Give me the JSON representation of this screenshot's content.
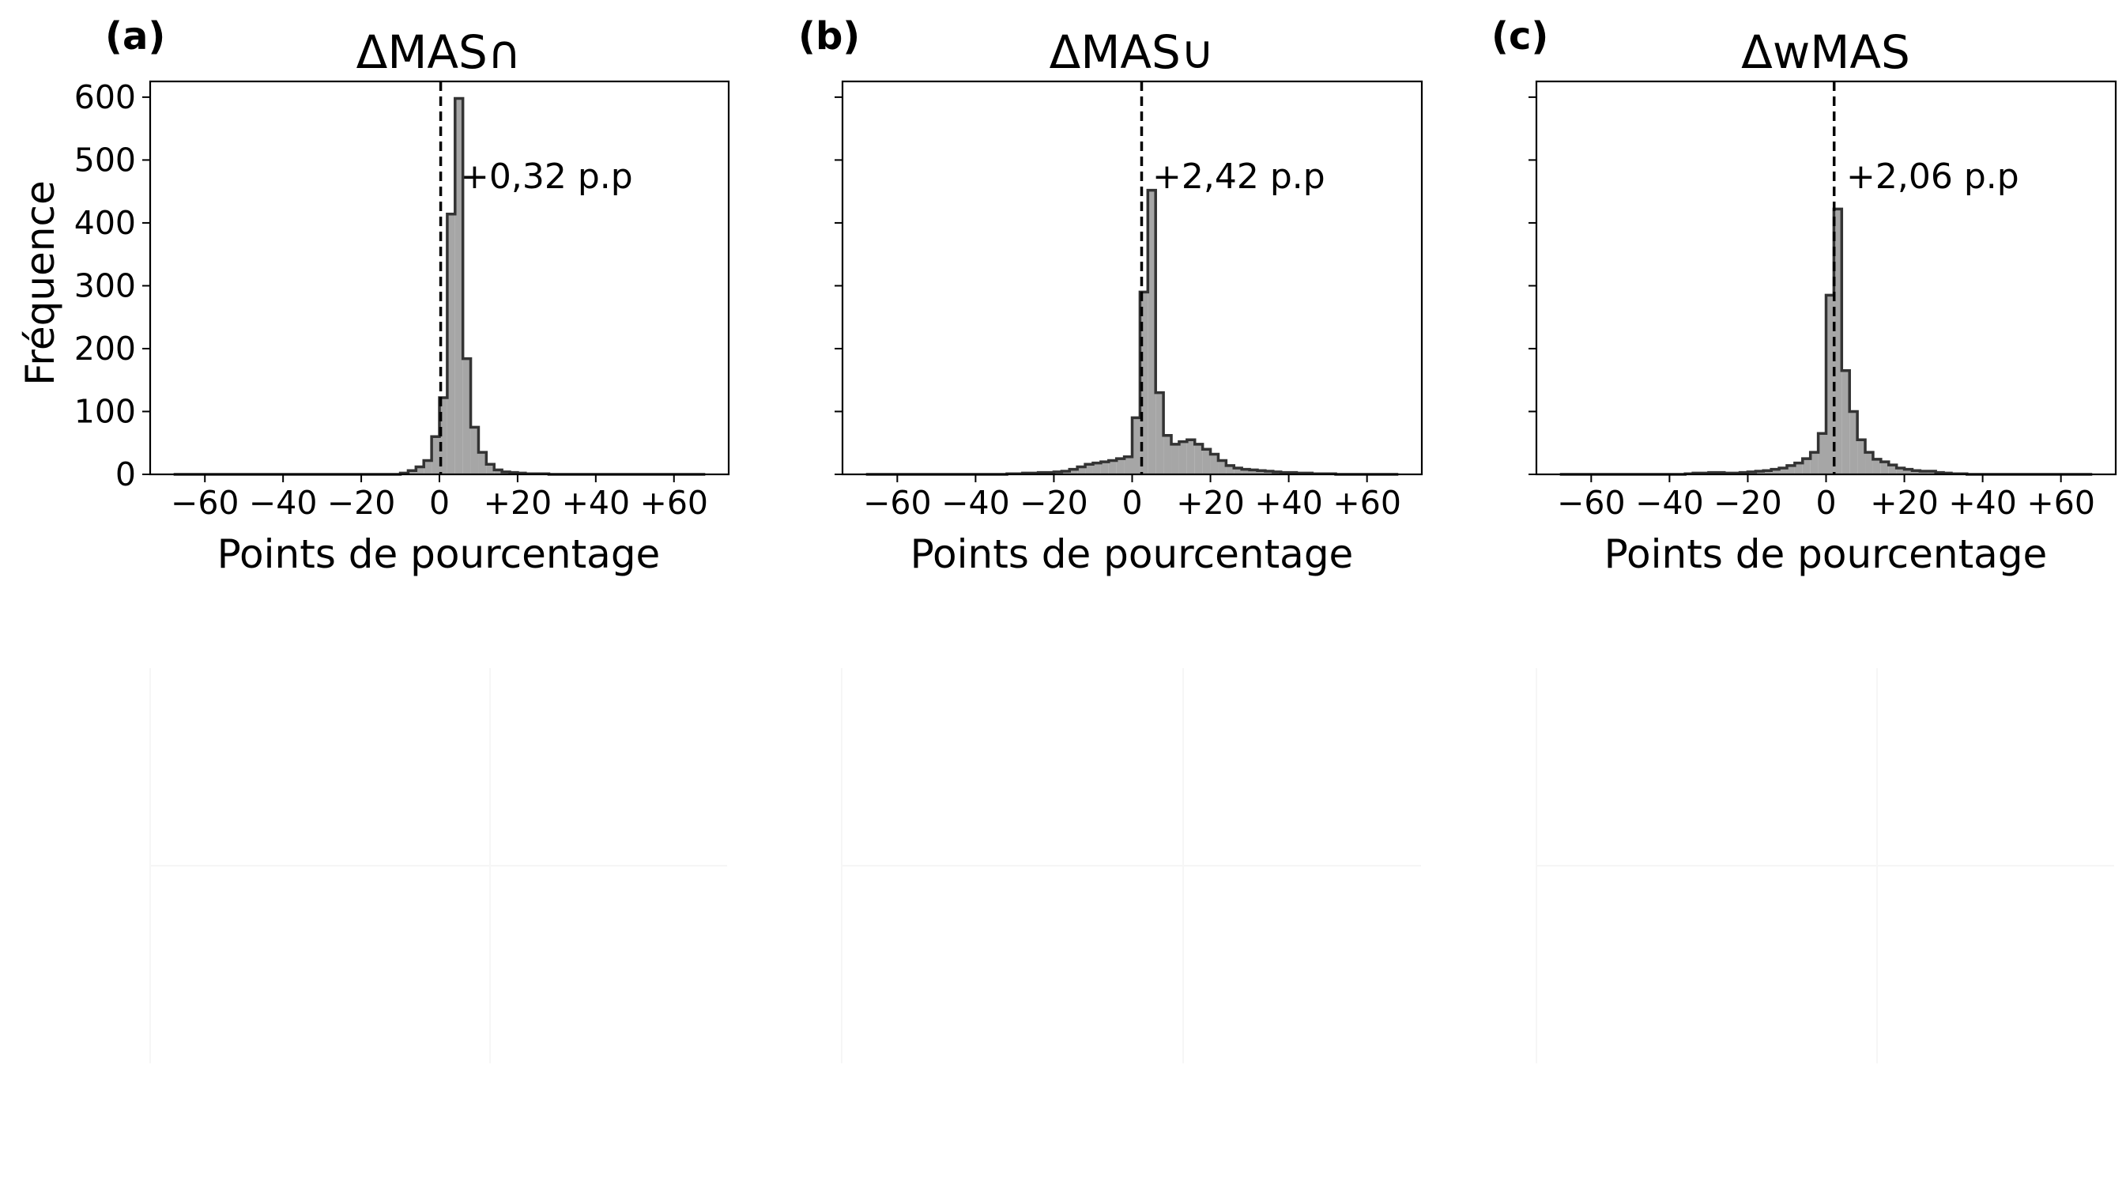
{
  "chart_data": [
    {
      "type": "bar",
      "panel_label": "(a)",
      "title": "ΔMAS∩",
      "xlabel": "Points de pourcentage",
      "ylabel": "Fréquence",
      "xlim": [
        -74,
        74
      ],
      "ylim": [
        0,
        625
      ],
      "x_ticks": [
        -60,
        -40,
        -20,
        0,
        20,
        40,
        60
      ],
      "x_tick_labels": [
        "−60",
        "−40",
        "−20",
        "0",
        "+20",
        "+40",
        "+60"
      ],
      "y_ticks": [
        0,
        100,
        200,
        300,
        400,
        500,
        600
      ],
      "y_tick_labels": [
        "0",
        "100",
        "200",
        "300",
        "400",
        "500",
        "600"
      ],
      "show_y_tick_labels": true,
      "bin_edges_start": -68,
      "bin_width": 2,
      "values": [
        0,
        0,
        0,
        0,
        0,
        0,
        0,
        0,
        0,
        0,
        0,
        0,
        0,
        0,
        0,
        0,
        0,
        0,
        0,
        0,
        0,
        0,
        0,
        0,
        0,
        0,
        0,
        0,
        0,
        2,
        6,
        12,
        22,
        60,
        122,
        414,
        598,
        184,
        75,
        35,
        16,
        7,
        4,
        3,
        2,
        1,
        1,
        1,
        0,
        0,
        0,
        0,
        0,
        0,
        0,
        0,
        0,
        0,
        0,
        0,
        0,
        0,
        0,
        0,
        0,
        0,
        0,
        0
      ],
      "mean": 0.32,
      "mean_label": "+0,32 p.p"
    },
    {
      "type": "bar",
      "panel_label": "(b)",
      "title": "ΔMAS∪",
      "xlabel": "Points de pourcentage",
      "ylabel": "",
      "xlim": [
        -74,
        74
      ],
      "ylim": [
        0,
        625
      ],
      "x_ticks": [
        -60,
        -40,
        -20,
        0,
        20,
        40,
        60
      ],
      "x_tick_labels": [
        "−60",
        "−40",
        "−20",
        "0",
        "+20",
        "+40",
        "+60"
      ],
      "y_ticks": [
        0,
        100,
        200,
        300,
        400,
        500,
        600
      ],
      "y_tick_labels": [],
      "show_y_tick_labels": false,
      "bin_edges_start": -68,
      "bin_width": 2,
      "values": [
        0,
        0,
        0,
        0,
        0,
        0,
        0,
        0,
        0,
        0,
        0,
        0,
        0,
        0,
        0,
        0,
        0,
        0,
        1,
        1,
        2,
        2,
        3,
        3,
        4,
        5,
        8,
        12,
        16,
        18,
        20,
        22,
        25,
        28,
        90,
        290,
        452,
        130,
        62,
        48,
        52,
        55,
        48,
        40,
        32,
        22,
        14,
        10,
        8,
        7,
        6,
        5,
        4,
        3,
        3,
        2,
        2,
        1,
        1,
        1,
        0,
        0,
        0,
        0,
        0,
        0,
        0,
        0
      ],
      "mean": 2.42,
      "mean_label": "+2,42 p.p"
    },
    {
      "type": "bar",
      "panel_label": "(c)",
      "title": "ΔwMAS",
      "xlabel": "Points de pourcentage",
      "ylabel": "",
      "xlim": [
        -74,
        74
      ],
      "ylim": [
        0,
        625
      ],
      "x_ticks": [
        -60,
        -40,
        -20,
        0,
        20,
        40,
        60
      ],
      "x_tick_labels": [
        "−60",
        "−40",
        "−20",
        "0",
        "+20",
        "+40",
        "+60"
      ],
      "y_ticks": [
        0,
        100,
        200,
        300,
        400,
        500,
        600
      ],
      "y_tick_labels": [],
      "show_y_tick_labels": false,
      "bin_edges_start": -68,
      "bin_width": 2,
      "values": [
        0,
        0,
        0,
        0,
        0,
        0,
        0,
        0,
        0,
        0,
        0,
        0,
        0,
        0,
        0,
        0,
        1,
        2,
        2,
        3,
        3,
        2,
        2,
        3,
        4,
        5,
        6,
        8,
        10,
        14,
        18,
        25,
        35,
        65,
        285,
        422,
        165,
        100,
        55,
        35,
        24,
        20,
        15,
        10,
        8,
        6,
        5,
        5,
        3,
        2,
        1,
        1,
        0,
        0,
        0,
        0,
        0,
        0,
        0,
        0,
        0,
        0,
        0,
        0,
        0,
        0,
        0,
        0
      ],
      "mean": 2.06,
      "mean_label": "+2,06 p.p"
    }
  ]
}
